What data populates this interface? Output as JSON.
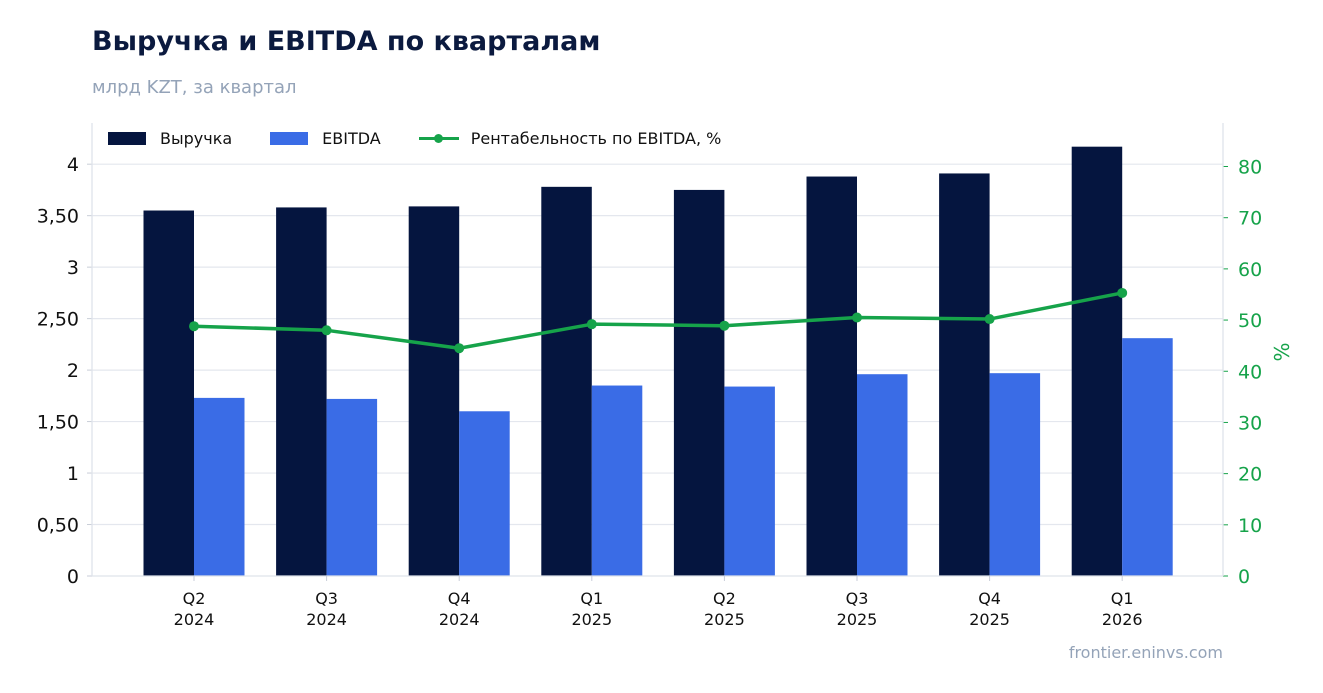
{
  "title": "Выручка и EBITDA по кварталам",
  "subtitle": "млрд KZT, за квартал",
  "source": "frontier.eninvs.com",
  "colors": {
    "revenue": "#05153f",
    "ebitda": "#3a6ce6",
    "margin": "#16a34a",
    "grid": "#e4e7ee",
    "axis": "#dfe3ea"
  },
  "chart_data": {
    "type": "bar",
    "categories": [
      [
        "Q2",
        "2024"
      ],
      [
        "Q3",
        "2024"
      ],
      [
        "Q4",
        "2024"
      ],
      [
        "Q1",
        "2025"
      ],
      [
        "Q2",
        "2025"
      ],
      [
        "Q3",
        "2025"
      ],
      [
        "Q4",
        "2025"
      ],
      [
        "Q1",
        "2026"
      ]
    ],
    "series": [
      {
        "name": "Выручка",
        "type": "bar",
        "axis": "left",
        "values": [
          3.55,
          3.58,
          3.59,
          3.78,
          3.75,
          3.88,
          3.91,
          4.17
        ]
      },
      {
        "name": "EBITDA",
        "type": "bar",
        "axis": "left",
        "values": [
          1.73,
          1.72,
          1.6,
          1.85,
          1.84,
          1.96,
          1.97,
          2.31
        ]
      },
      {
        "name": "Рентабельность по EBITDA, %",
        "type": "line",
        "axis": "right",
        "values": [
          48.8,
          48.0,
          44.5,
          49.2,
          48.9,
          50.5,
          50.2,
          55.3
        ]
      }
    ],
    "left_axis": {
      "ylim": [
        0,
        4.4
      ],
      "ticks": [
        0,
        0.5,
        1,
        1.5,
        2,
        2.5,
        3,
        3.5,
        4
      ],
      "tick_labels": [
        "0",
        "0,50",
        "1",
        "1,50",
        "2",
        "2,50",
        "3",
        "3,50",
        "4"
      ]
    },
    "right_axis": {
      "label": "%",
      "ylim": [
        0,
        88.5
      ],
      "ticks": [
        0,
        10,
        20,
        30,
        40,
        50,
        60,
        70,
        80
      ],
      "tick_labels": [
        "0",
        "10",
        "20",
        "30",
        "40",
        "50",
        "60",
        "70",
        "80"
      ]
    },
    "grid": true,
    "legend": "top-left"
  }
}
